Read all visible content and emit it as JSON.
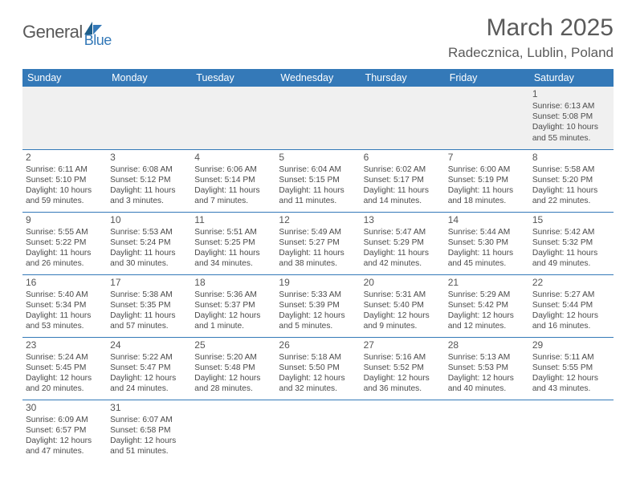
{
  "logo": {
    "text1": "General",
    "text2": "Blue"
  },
  "title": "March 2025",
  "location": "Radecznica, Lublin, Poland",
  "colors": {
    "header_bg": "#3479b8",
    "header_fg": "#ffffff",
    "text": "#4a4a4a"
  },
  "weekdays": [
    "Sunday",
    "Monday",
    "Tuesday",
    "Wednesday",
    "Thursday",
    "Friday",
    "Saturday"
  ],
  "weeks": [
    [
      null,
      null,
      null,
      null,
      null,
      null,
      {
        "n": "1",
        "sr": "6:13 AM",
        "ss": "5:08 PM",
        "dl": "10 hours and 55 minutes."
      }
    ],
    [
      {
        "n": "2",
        "sr": "6:11 AM",
        "ss": "5:10 PM",
        "dl": "10 hours and 59 minutes."
      },
      {
        "n": "3",
        "sr": "6:08 AM",
        "ss": "5:12 PM",
        "dl": "11 hours and 3 minutes."
      },
      {
        "n": "4",
        "sr": "6:06 AM",
        "ss": "5:14 PM",
        "dl": "11 hours and 7 minutes."
      },
      {
        "n": "5",
        "sr": "6:04 AM",
        "ss": "5:15 PM",
        "dl": "11 hours and 11 minutes."
      },
      {
        "n": "6",
        "sr": "6:02 AM",
        "ss": "5:17 PM",
        "dl": "11 hours and 14 minutes."
      },
      {
        "n": "7",
        "sr": "6:00 AM",
        "ss": "5:19 PM",
        "dl": "11 hours and 18 minutes."
      },
      {
        "n": "8",
        "sr": "5:58 AM",
        "ss": "5:20 PM",
        "dl": "11 hours and 22 minutes."
      }
    ],
    [
      {
        "n": "9",
        "sr": "5:55 AM",
        "ss": "5:22 PM",
        "dl": "11 hours and 26 minutes."
      },
      {
        "n": "10",
        "sr": "5:53 AM",
        "ss": "5:24 PM",
        "dl": "11 hours and 30 minutes."
      },
      {
        "n": "11",
        "sr": "5:51 AM",
        "ss": "5:25 PM",
        "dl": "11 hours and 34 minutes."
      },
      {
        "n": "12",
        "sr": "5:49 AM",
        "ss": "5:27 PM",
        "dl": "11 hours and 38 minutes."
      },
      {
        "n": "13",
        "sr": "5:47 AM",
        "ss": "5:29 PM",
        "dl": "11 hours and 42 minutes."
      },
      {
        "n": "14",
        "sr": "5:44 AM",
        "ss": "5:30 PM",
        "dl": "11 hours and 45 minutes."
      },
      {
        "n": "15",
        "sr": "5:42 AM",
        "ss": "5:32 PM",
        "dl": "11 hours and 49 minutes."
      }
    ],
    [
      {
        "n": "16",
        "sr": "5:40 AM",
        "ss": "5:34 PM",
        "dl": "11 hours and 53 minutes."
      },
      {
        "n": "17",
        "sr": "5:38 AM",
        "ss": "5:35 PM",
        "dl": "11 hours and 57 minutes."
      },
      {
        "n": "18",
        "sr": "5:36 AM",
        "ss": "5:37 PM",
        "dl": "12 hours and 1 minute."
      },
      {
        "n": "19",
        "sr": "5:33 AM",
        "ss": "5:39 PM",
        "dl": "12 hours and 5 minutes."
      },
      {
        "n": "20",
        "sr": "5:31 AM",
        "ss": "5:40 PM",
        "dl": "12 hours and 9 minutes."
      },
      {
        "n": "21",
        "sr": "5:29 AM",
        "ss": "5:42 PM",
        "dl": "12 hours and 12 minutes."
      },
      {
        "n": "22",
        "sr": "5:27 AM",
        "ss": "5:44 PM",
        "dl": "12 hours and 16 minutes."
      }
    ],
    [
      {
        "n": "23",
        "sr": "5:24 AM",
        "ss": "5:45 PM",
        "dl": "12 hours and 20 minutes."
      },
      {
        "n": "24",
        "sr": "5:22 AM",
        "ss": "5:47 PM",
        "dl": "12 hours and 24 minutes."
      },
      {
        "n": "25",
        "sr": "5:20 AM",
        "ss": "5:48 PM",
        "dl": "12 hours and 28 minutes."
      },
      {
        "n": "26",
        "sr": "5:18 AM",
        "ss": "5:50 PM",
        "dl": "12 hours and 32 minutes."
      },
      {
        "n": "27",
        "sr": "5:16 AM",
        "ss": "5:52 PM",
        "dl": "12 hours and 36 minutes."
      },
      {
        "n": "28",
        "sr": "5:13 AM",
        "ss": "5:53 PM",
        "dl": "12 hours and 40 minutes."
      },
      {
        "n": "29",
        "sr": "5:11 AM",
        "ss": "5:55 PM",
        "dl": "12 hours and 43 minutes."
      }
    ],
    [
      {
        "n": "30",
        "sr": "6:09 AM",
        "ss": "6:57 PM",
        "dl": "12 hours and 47 minutes."
      },
      {
        "n": "31",
        "sr": "6:07 AM",
        "ss": "6:58 PM",
        "dl": "12 hours and 51 minutes."
      },
      null,
      null,
      null,
      null,
      null
    ]
  ],
  "labels": {
    "sunrise": "Sunrise:",
    "sunset": "Sunset:",
    "daylight": "Daylight:"
  }
}
